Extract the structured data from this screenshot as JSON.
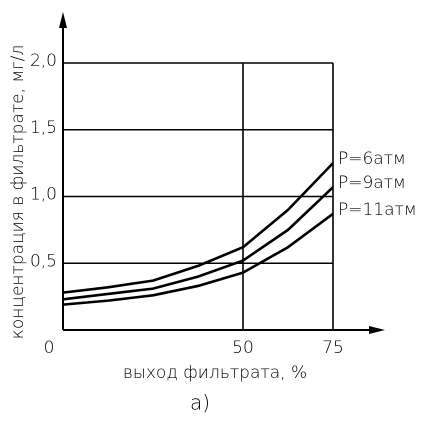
{
  "chart_data": {
    "type": "line",
    "x_label": "выход фильтрата, %",
    "y_label": "концентрация в фильтрате, мг/л",
    "caption": "а)",
    "x": [
      0,
      12.5,
      25,
      37.5,
      50,
      62.5,
      75
    ],
    "series": [
      {
        "name": "P=6атм",
        "color": "#000000",
        "values": [
          0.28,
          0.32,
          0.37,
          0.48,
          0.62,
          0.9,
          1.25
        ]
      },
      {
        "name": "P=9атм",
        "color": "#000000",
        "values": [
          0.23,
          0.27,
          0.31,
          0.4,
          0.52,
          0.75,
          1.07
        ]
      },
      {
        "name": "P=11атм",
        "color": "#000000",
        "values": [
          0.19,
          0.22,
          0.26,
          0.33,
          0.43,
          0.62,
          0.87
        ]
      }
    ],
    "xlim": [
      0,
      75
    ],
    "ylim": [
      0,
      2
    ],
    "xticks": [
      0,
      50,
      75
    ],
    "yticks": [
      {
        "value": 0.5,
        "label": "0,5"
      },
      {
        "value": 1,
        "label": "1,0"
      },
      {
        "value": 1.5,
        "label": "1,5"
      },
      {
        "value": 2,
        "label": "2,0"
      }
    ],
    "grid": true
  }
}
